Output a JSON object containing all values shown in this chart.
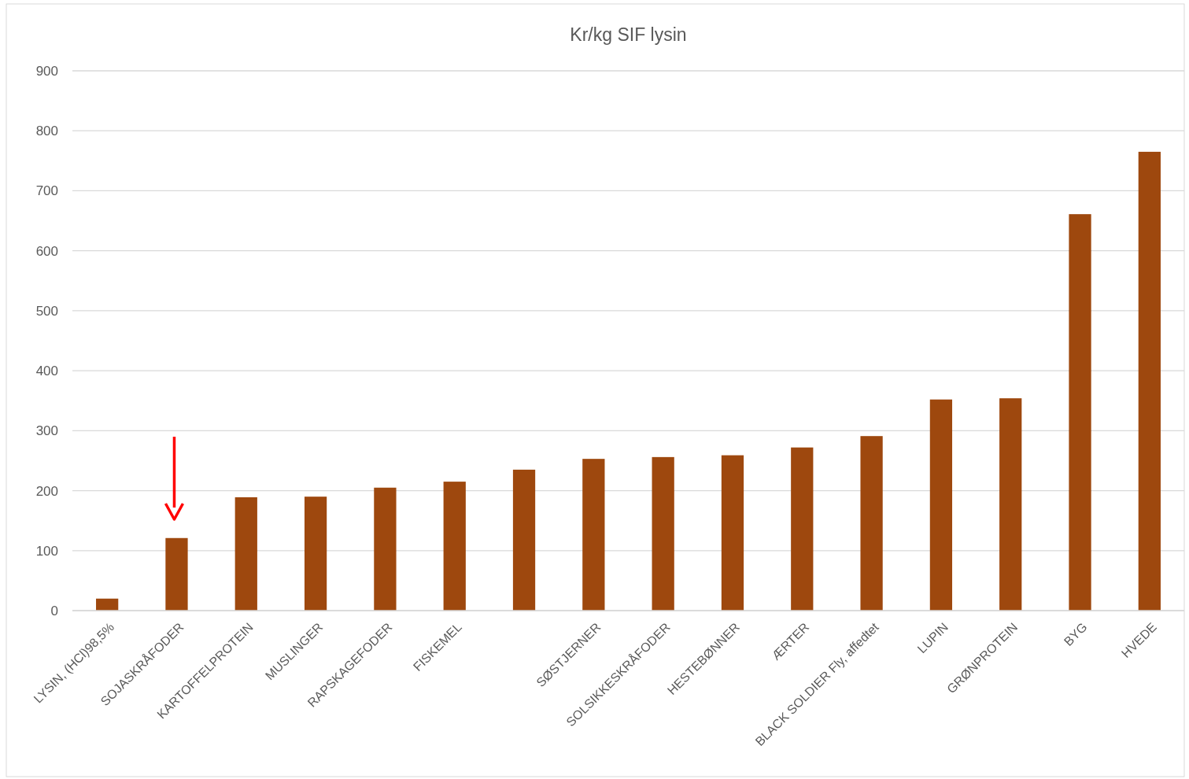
{
  "chart_data": {
    "type": "bar",
    "title": "Kr/kg SIF lysin",
    "categories": [
      "LYSIN, (HCl)98,5%",
      "SOJASKRÅFODER",
      "KARTOFFELPROTEIN",
      "MUSLINGER",
      "RAPSKAGEFODER",
      "FISKEMEL",
      null,
      "SØSTJERNER",
      "SOLSIKKESKRÅFODER",
      "HESTEBØNNER",
      "ÆRTER",
      "BLACK SOLDIER Fly, affedtet",
      "LUPIN",
      "GRØNPROTEIN",
      "BYG",
      "HVEDE"
    ],
    "values": [
      20,
      121,
      189,
      190,
      205,
      215,
      235,
      253,
      256,
      259,
      272,
      291,
      352,
      354,
      661,
      765
    ],
    "color": "#9e480e",
    "ylim": [
      0,
      900
    ],
    "yticks": [
      0,
      100,
      200,
      300,
      400,
      500,
      600,
      700,
      800,
      900
    ],
    "grid": "y"
  }
}
